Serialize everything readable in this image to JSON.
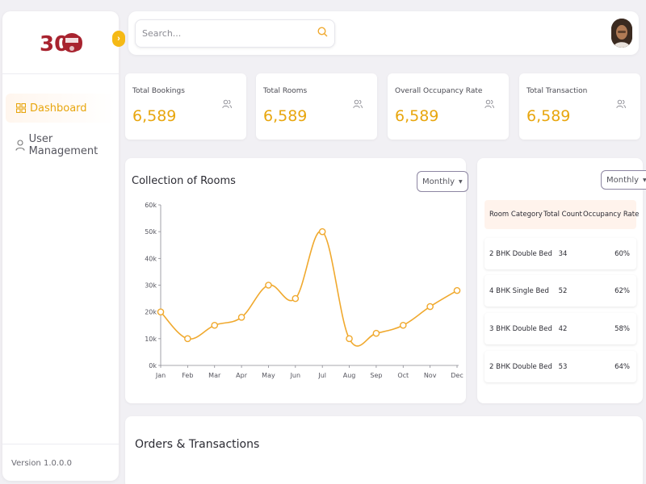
{
  "sidebar": {
    "logo_text": "300",
    "nav": [
      {
        "label": "Dashboard",
        "active": true
      },
      {
        "label": "User Management",
        "active": false
      }
    ],
    "version": "Version 1.0.0.0"
  },
  "topbar": {
    "search_placeholder": "Search..."
  },
  "stats": [
    {
      "label": "Total Bookings",
      "value": "6,589"
    },
    {
      "label": "Total Rooms",
      "value": "6,589"
    },
    {
      "label": "Overall Occupancy Rate",
      "value": "6,589"
    },
    {
      "label": "Total Transaction",
      "value": "6,589"
    }
  ],
  "chart_card": {
    "title": "Collection of Rooms",
    "period": "Monthly"
  },
  "chart_data": {
    "type": "line",
    "title": "Collection of Rooms",
    "categories": [
      "Jan",
      "Feb",
      "Mar",
      "Apr",
      "May",
      "Jun",
      "Jul",
      "Aug",
      "Sep",
      "Oct",
      "Nov",
      "Dec"
    ],
    "values": [
      20000,
      10000,
      15000,
      18000,
      30000,
      25000,
      50000,
      10000,
      12000,
      15000,
      22000,
      28000
    ],
    "yticks": [
      "0k",
      "10k",
      "20k",
      "30k",
      "40k",
      "50k",
      "60k"
    ],
    "ylim": [
      0,
      60000
    ],
    "color": "#f0a92e",
    "grid": false
  },
  "room_table": {
    "period": "Monthly",
    "headers": [
      "Room Category",
      "Total Count",
      "Occupancy Rate"
    ],
    "rows": [
      [
        "2 BHK Double Bed",
        "34",
        "60%"
      ],
      [
        "4 BHK Single Bed",
        "52",
        "62%"
      ],
      [
        "3 BHK Double Bed",
        "42",
        "58%"
      ],
      [
        "2 BHK Double Bed",
        "53",
        "64%"
      ]
    ]
  },
  "orders": {
    "title": "Orders & Transactions"
  },
  "colors": {
    "accent": "#f5b915",
    "value": "#e8a60e",
    "line": "#f0a92e",
    "logo": "#a8232f"
  }
}
